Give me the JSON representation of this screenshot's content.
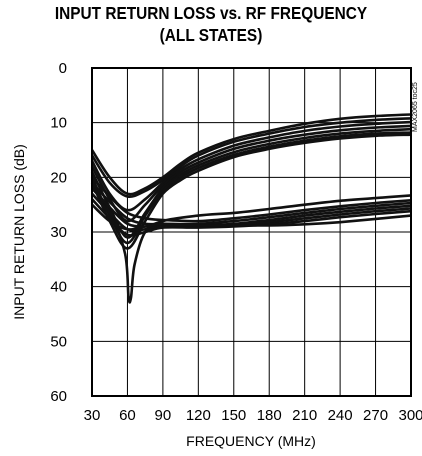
{
  "chart_data": {
    "type": "line",
    "title": "INPUT RETURN LOSS vs. RF FREQUENCY",
    "subtitle": "(ALL STATES)",
    "xlabel": "FREQUENCY (MHz)",
    "ylabel": "INPUT RETURN LOSS (dB)",
    "xlim": [
      30,
      300
    ],
    "ylim": [
      0,
      60
    ],
    "y_inverted": true,
    "grid": true,
    "xticks": [
      "30",
      "60",
      "90",
      "120",
      "150",
      "180",
      "210",
      "240",
      "270",
      "300"
    ],
    "yticks": [
      "0",
      "10",
      "20",
      "30",
      "40",
      "50",
      "60"
    ],
    "annotation": "MAX2065 toc25",
    "series": [
      {
        "x": [
          30,
          45,
          60,
          75,
          90,
          105,
          120,
          150,
          180,
          210,
          240,
          270,
          300
        ],
        "values": [
          15,
          20,
          23,
          22,
          20,
          17.5,
          15.5,
          13,
          11.5,
          10.2,
          9.3,
          8.8,
          8.5
        ]
      },
      {
        "x": [
          30,
          45,
          60,
          75,
          90,
          105,
          120,
          150,
          180,
          210,
          240,
          270,
          300
        ],
        "values": [
          16,
          21,
          23.5,
          22.5,
          20.5,
          18,
          16,
          13.5,
          12,
          10.8,
          10,
          9.5,
          9.2
        ]
      },
      {
        "x": [
          30,
          45,
          60,
          75,
          90,
          105,
          120,
          150,
          180,
          210,
          240,
          270,
          300
        ],
        "values": [
          17,
          23,
          26,
          24,
          21,
          18.5,
          16.7,
          14.2,
          12.7,
          11.5,
          10.7,
          10.2,
          9.9
        ]
      },
      {
        "x": [
          30,
          45,
          60,
          75,
          90,
          105,
          120,
          150,
          180,
          210,
          240,
          270,
          300
        ],
        "values": [
          18,
          24,
          28,
          25,
          21.5,
          19,
          17.3,
          14.8,
          13.3,
          12.2,
          11.4,
          10.9,
          10.6
        ]
      },
      {
        "x": [
          30,
          45,
          60,
          75,
          90,
          105,
          120,
          150,
          180,
          210,
          240,
          270,
          300
        ],
        "values": [
          19,
          25.5,
          31,
          26.5,
          22,
          19.5,
          17.8,
          15.4,
          13.9,
          12.8,
          12,
          11.5,
          11.2
        ]
      },
      {
        "x": [
          30,
          45,
          60,
          75,
          90,
          105,
          120,
          150,
          180,
          210,
          240,
          270,
          300
        ],
        "values": [
          20,
          27,
          32,
          27,
          22.5,
          20,
          18.3,
          15.9,
          14.4,
          13.3,
          12.5,
          12,
          11.8
        ]
      },
      {
        "x": [
          30,
          45,
          60,
          75,
          90,
          105,
          120,
          150,
          180,
          210,
          240,
          270,
          300
        ],
        "values": [
          21,
          28,
          33,
          28,
          23,
          20.5,
          18.8,
          16.3,
          14.8,
          13.7,
          12.9,
          12.4,
          12.2
        ]
      },
      {
        "x": [
          30,
          45,
          58,
          61,
          63,
          66,
          75,
          90,
          120,
          150,
          180,
          210,
          240,
          270,
          300
        ],
        "values": [
          22,
          26,
          34,
          42,
          42,
          36,
          30,
          28,
          27,
          26.5,
          25.8,
          25,
          24.3,
          23.8,
          23.3
        ]
      },
      {
        "x": [
          30,
          45,
          60,
          75,
          90,
          120,
          150,
          180,
          210,
          240,
          270,
          300
        ],
        "values": [
          20,
          23.5,
          26.5,
          27.5,
          27.8,
          28,
          27.5,
          26.8,
          26,
          25.3,
          24.7,
          24.2
        ]
      },
      {
        "x": [
          30,
          45,
          60,
          75,
          90,
          120,
          150,
          180,
          210,
          240,
          270,
          300
        ],
        "values": [
          21,
          24.5,
          27.5,
          28.5,
          28.5,
          28.5,
          28,
          27.3,
          26.5,
          25.8,
          25.2,
          24.7
        ]
      },
      {
        "x": [
          30,
          45,
          60,
          75,
          90,
          120,
          150,
          180,
          210,
          240,
          270,
          300
        ],
        "values": [
          22,
          25.5,
          28.5,
          29,
          28.8,
          28.8,
          28.5,
          27.8,
          27,
          26.3,
          25.7,
          25.2
        ]
      },
      {
        "x": [
          30,
          45,
          60,
          75,
          90,
          120,
          150,
          180,
          210,
          240,
          270,
          300
        ],
        "values": [
          23,
          26.5,
          29.5,
          29.5,
          29,
          29,
          28.8,
          28.2,
          27.5,
          26.8,
          26.2,
          25.7
        ]
      },
      {
        "x": [
          30,
          45,
          60,
          75,
          90,
          120,
          150,
          180,
          210,
          240,
          270,
          300
        ],
        "values": [
          24,
          27.5,
          30.5,
          30,
          29.2,
          29.2,
          29,
          28.6,
          28,
          27.3,
          26.7,
          26.2
        ]
      },
      {
        "x": [
          30,
          45,
          60,
          75,
          90,
          120,
          150,
          180,
          210,
          240,
          270,
          300
        ],
        "values": [
          25,
          28,
          29.5,
          29,
          28.6,
          28.8,
          28.8,
          28.8,
          28.6,
          28.2,
          27.6,
          27
        ]
      }
    ]
  }
}
